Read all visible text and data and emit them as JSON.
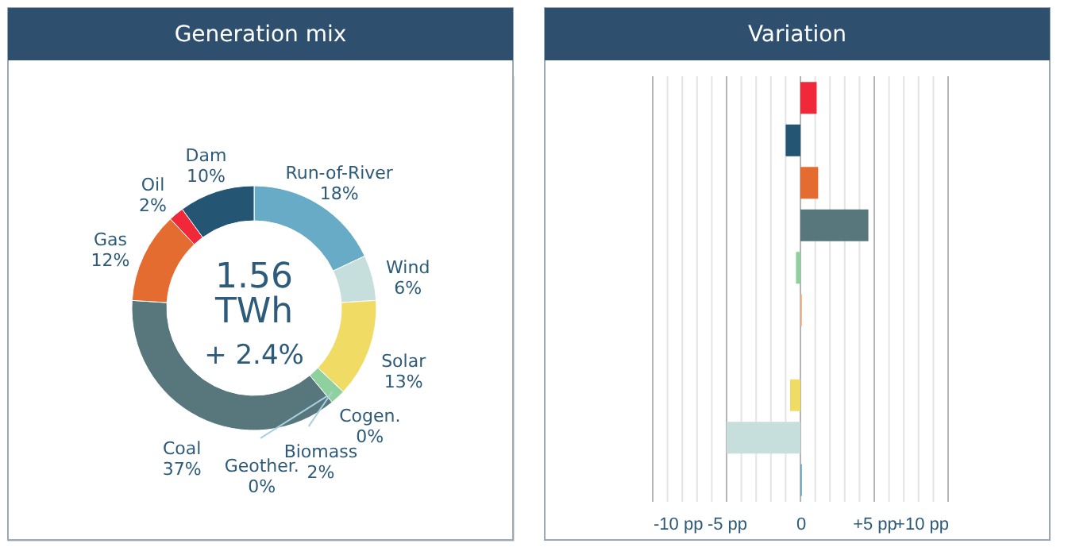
{
  "chart_data": [
    {
      "type": "donut",
      "title": "Generation mix",
      "categories": [
        "Run-of-River",
        "Wind",
        "Solar",
        "Cogen.",
        "Biomass",
        "Geother.",
        "Coal",
        "Gas",
        "Oil",
        "Dam"
      ],
      "values": [
        18,
        6,
        13,
        0,
        2,
        0,
        37,
        12,
        2,
        10
      ],
      "value_labels": [
        "18%",
        "6%",
        "13%",
        "0%",
        "2%",
        "0%",
        "37%",
        "12%",
        "2%",
        "10%"
      ],
      "colors": [
        "#68abc6",
        "#c6dfdd",
        "#f0dc64",
        "#8b4a2b",
        "#8fd19e",
        "#b9dbe6",
        "#57777d",
        "#e46c30",
        "#f0283a",
        "#245573"
      ],
      "annotations": [
        "1.56",
        "TWh",
        "+ 2.4%"
      ]
    },
    {
      "type": "bar",
      "title": "Variation",
      "orientation": "horizontal",
      "categories": [
        null,
        null,
        null,
        null,
        null,
        null,
        null,
        null,
        null,
        null
      ],
      "values": [
        1.1,
        -1.0,
        1.2,
        4.6,
        -0.3,
        0.1,
        0,
        -0.7,
        -5.0,
        0.1
      ],
      "colors": [
        "#f0283a",
        "#245573",
        "#e46c30",
        "#57777d",
        "#8fd19e",
        "#f4b183",
        "#b9dbe6",
        "#f0dc64",
        "#c6dfdd",
        "#68abc6"
      ],
      "xlim": [
        -10,
        10
      ],
      "xticks": [
        {
          "value": -10,
          "label": "-10 pp"
        },
        {
          "value": -9,
          "label": null
        },
        {
          "value": -8,
          "label": null
        },
        {
          "value": -7,
          "label": null
        },
        {
          "value": -6,
          "label": null
        },
        {
          "value": -5,
          "label": "-5 pp"
        },
        {
          "value": -4,
          "label": null
        },
        {
          "value": -3,
          "label": null
        },
        {
          "value": -2,
          "label": null
        },
        {
          "value": -1,
          "label": null
        },
        0,
        {
          "value": 1,
          "label": null
        },
        {
          "value": 2,
          "label": null
        },
        {
          "value": 3,
          "label": null
        },
        {
          "value": 4,
          "label": null
        },
        {
          "value": 5,
          "label": "+5 pp"
        },
        {
          "value": 6,
          "label": null
        },
        {
          "value": 7,
          "label": null
        },
        {
          "value": 8,
          "label": null
        },
        {
          "value": 9,
          "label": null
        },
        {
          "value": 10,
          "label": "+10 pp"
        }
      ],
      "grid": "x",
      "tick_labels": "x"
    }
  ]
}
